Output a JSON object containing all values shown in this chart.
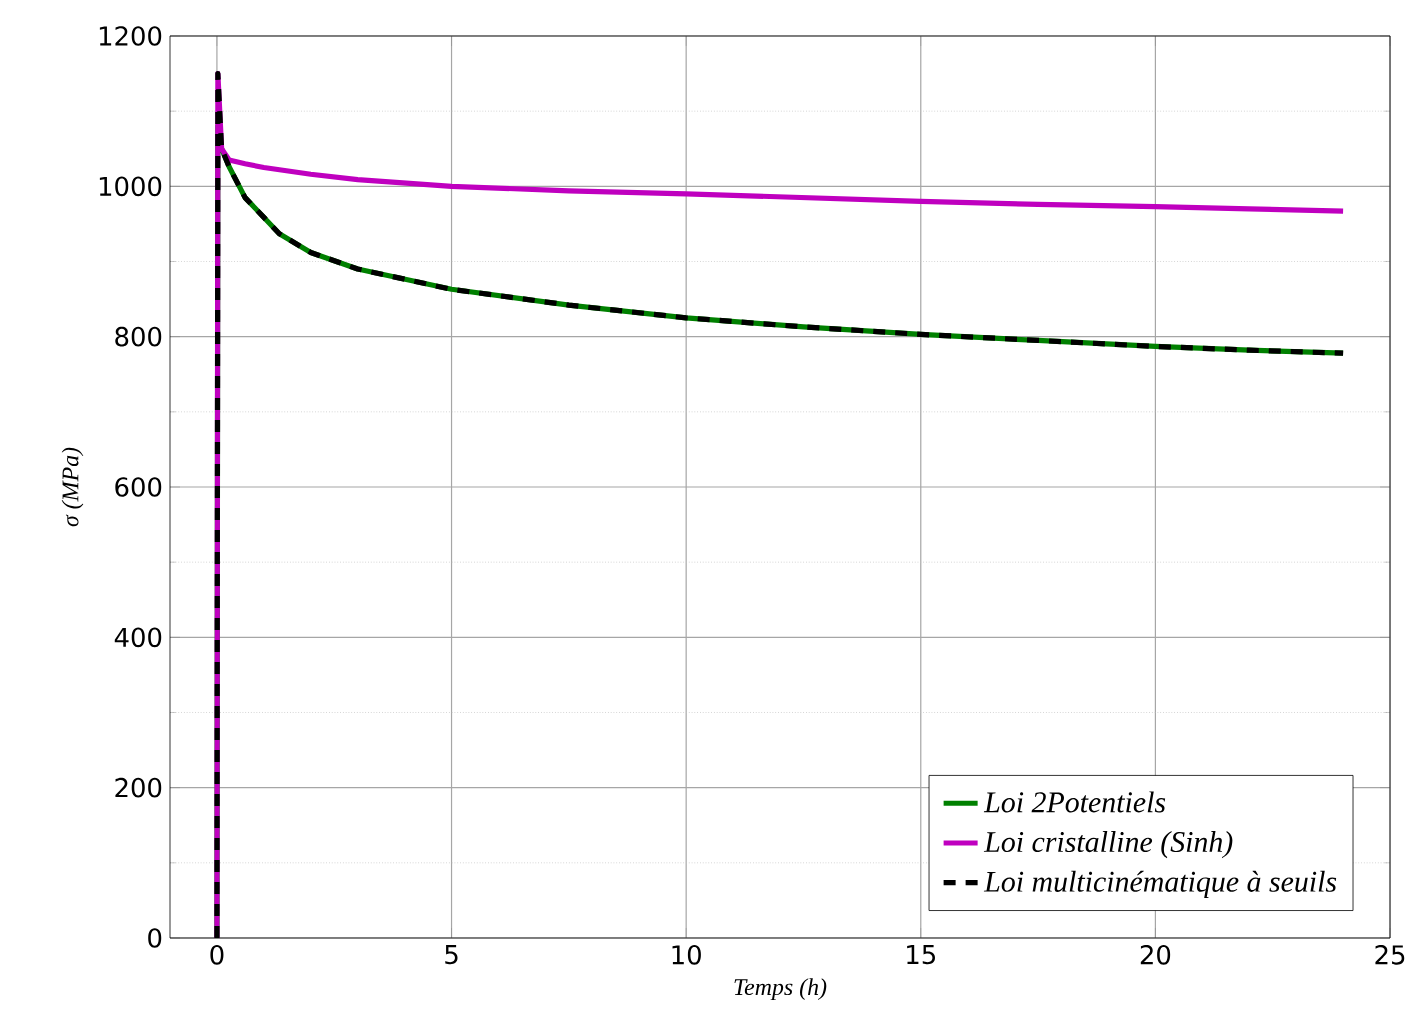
{
  "chart_data": {
    "type": "line",
    "xlabel": "Temps (h)",
    "ylabel": "σ (MPa)",
    "xlim": [
      -1,
      25
    ],
    "ylim": [
      0,
      1200
    ],
    "xticks": [
      0,
      5,
      10,
      15,
      20,
      25
    ],
    "yticks": [
      0,
      200,
      400,
      600,
      800,
      1000,
      1200
    ],
    "grid": true,
    "legend": "bottom right",
    "marker": "none",
    "series": [
      {
        "name": "Loi 2Potentiels",
        "color": "#008000",
        "line_style": "solid",
        "x": [
          0,
          0.02,
          0.1,
          0.26,
          0.6,
          1.33,
          2,
          3,
          5,
          7.5,
          10,
          12.5,
          15,
          17.5,
          20,
          22,
          24
        ],
        "values": [
          0,
          1080,
          1050,
          1026,
          985,
          937,
          912,
          890,
          863,
          842,
          825,
          813,
          803,
          795,
          787,
          782,
          778
        ]
      },
      {
        "name": "Loi cristalline (Sinh)",
        "color": "#bf00bf",
        "line_style": "solid",
        "x": [
          0,
          0.02,
          0.1,
          0.26,
          0.6,
          1,
          2,
          3,
          5,
          7.5,
          10,
          12.5,
          15,
          17.5,
          20,
          22,
          24
        ],
        "values": [
          0,
          1150,
          1050,
          1035,
          1030,
          1025,
          1016,
          1009,
          1000,
          994,
          990,
          985,
          980,
          976,
          973,
          970,
          967
        ]
      },
      {
        "name": "Loi multicinématique à seuils",
        "color": "#000000",
        "line_style": "dashed",
        "x": [
          0,
          0.02,
          0.1,
          0.26,
          0.6,
          1.33,
          2,
          3,
          5,
          7.5,
          10,
          12.5,
          15,
          17.5,
          20,
          22,
          24
        ],
        "values": [
          0,
          1150,
          1050,
          1026,
          985,
          937,
          912,
          890,
          863,
          842,
          825,
          813,
          803,
          795,
          787,
          782,
          778
        ]
      }
    ]
  }
}
